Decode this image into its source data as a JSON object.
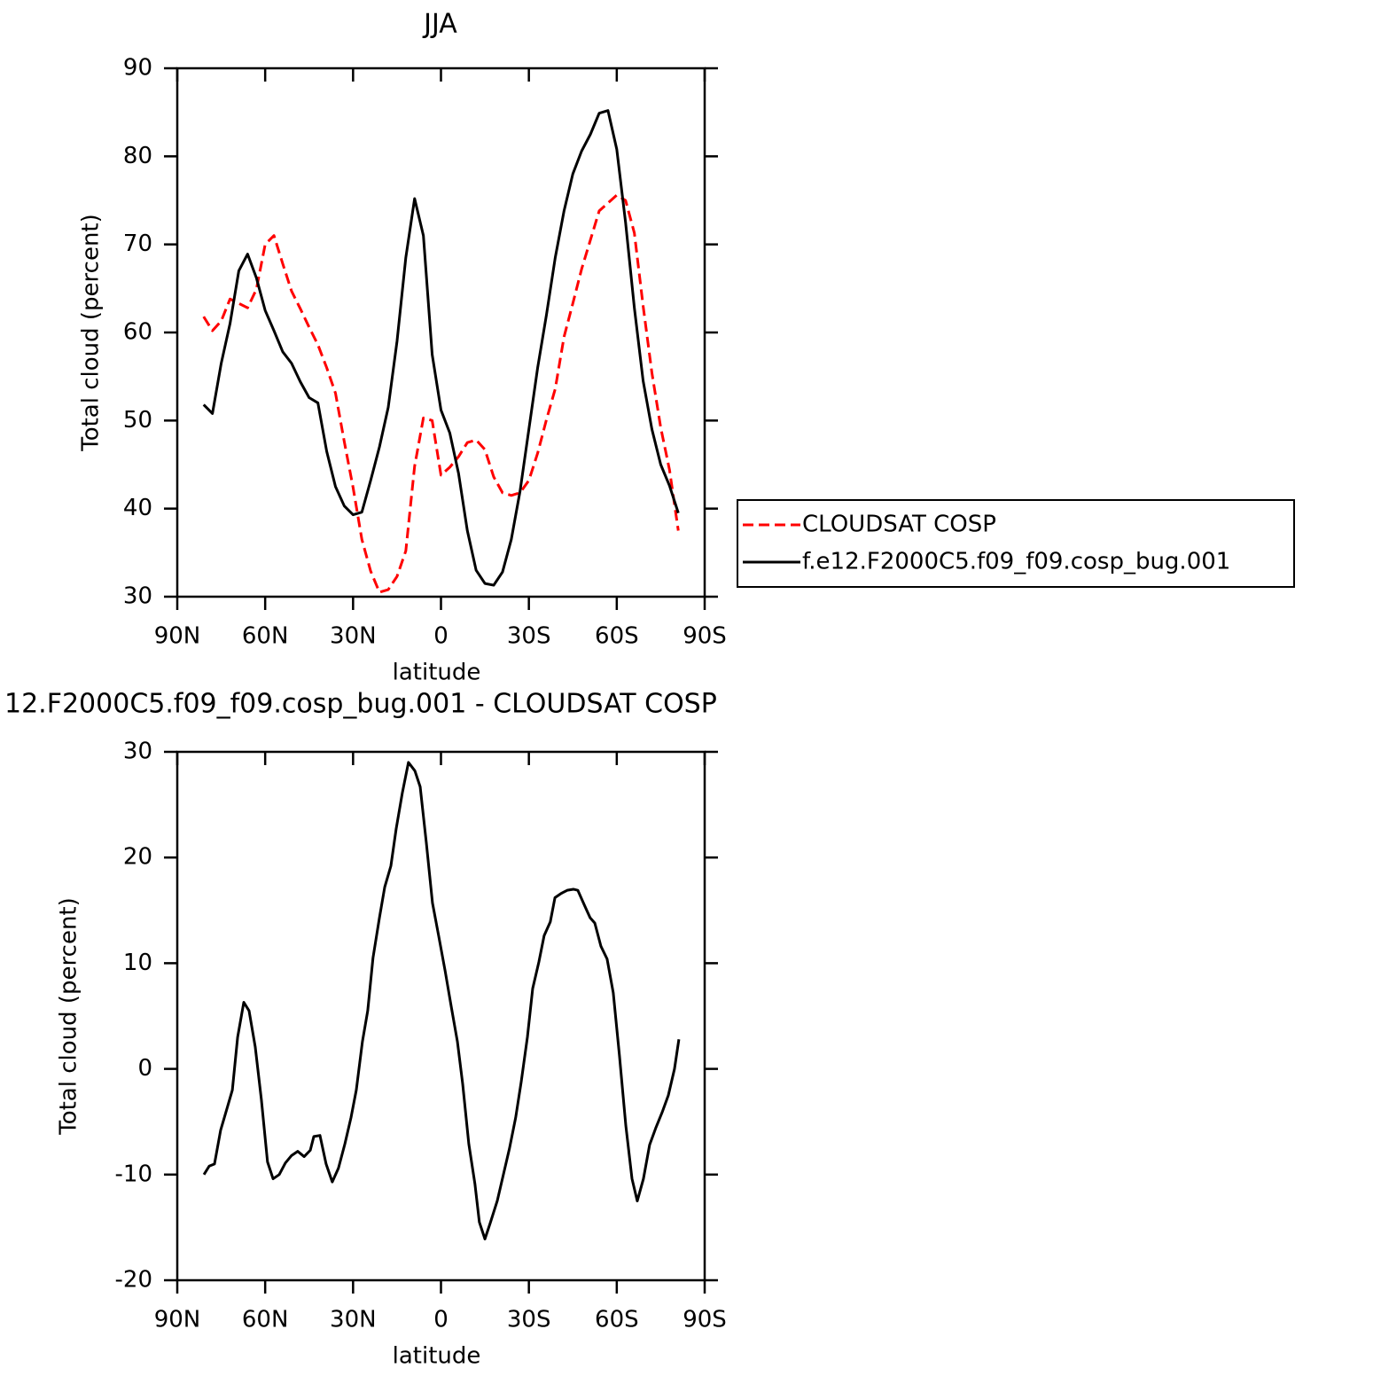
{
  "chart_data": [
    {
      "type": "line",
      "title": "JJA",
      "xlabel": "latitude",
      "ylabel": "Total cloud (percent)",
      "x": [
        81,
        78,
        75,
        72,
        69,
        66,
        63,
        60,
        57,
        54,
        51,
        48,
        45,
        42,
        39,
        36,
        33,
        30,
        27,
        24,
        21,
        18,
        15,
        12,
        9,
        6,
        3,
        0,
        -3,
        -6,
        -9,
        -12,
        -15,
        -18,
        -21,
        -24,
        -27,
        -30,
        -33,
        -36,
        -39,
        -42,
        -45,
        -48,
        -51,
        -54,
        -57,
        -60,
        -63,
        -66,
        -69,
        -72,
        -75,
        -78,
        -81
      ],
      "series": [
        {
          "name": "CLOUDSAT COSP",
          "color": "#ff0000",
          "style": "dashed",
          "values": [
            61.8,
            60.2,
            61.3,
            63.8,
            63.3,
            62.8,
            64.9,
            70.0,
            71.0,
            67.8,
            64.7,
            62.7,
            60.6,
            58.6,
            56.0,
            53.1,
            47.6,
            42.4,
            36.5,
            32.9,
            30.5,
            30.8,
            32.3,
            35.2,
            44.8,
            50.3,
            50.0,
            43.8,
            44.7,
            45.9,
            47.5,
            47.8,
            46.7,
            43.6,
            41.8,
            41.5,
            41.8,
            43.2,
            46.3,
            50.1,
            53.6,
            59.5,
            63.3,
            67.2,
            70.5,
            73.8,
            74.7,
            75.6,
            75.0,
            71.3,
            63.0,
            55.4,
            49.2,
            44.4,
            37.5
          ]
        },
        {
          "name": "f.e12.F2000C5.f09_f09.cosp_bug.001",
          "color": "#000000",
          "style": "solid",
          "values": [
            51.8,
            50.8,
            56.5,
            61.0,
            67.0,
            68.9,
            66.2,
            62.5,
            60.2,
            57.8,
            56.5,
            54.4,
            52.6,
            52.0,
            46.5,
            42.5,
            40.3,
            39.3,
            39.6,
            43.2,
            47.0,
            51.5,
            59.0,
            68.5,
            75.2,
            71.0,
            57.5,
            51.2,
            48.6,
            44.0,
            37.5,
            33.0,
            31.5,
            31.3,
            32.8,
            36.5,
            42.0,
            49.0,
            56.0,
            62.0,
            68.5,
            73.8,
            78.0,
            80.6,
            82.5,
            84.9,
            85.2,
            80.8,
            72.5,
            62.8,
            54.5,
            49.0,
            45.0,
            42.6,
            39.5
          ]
        }
      ],
      "xlim": [
        90,
        -90
      ],
      "xticks": [
        {
          "value": 90,
          "label": "90N"
        },
        {
          "value": 60,
          "label": "60N"
        },
        {
          "value": 30,
          "label": "30N"
        },
        0,
        {
          "value": -30,
          "label": "30S"
        },
        {
          "value": -60,
          "label": "60S"
        },
        {
          "value": -90,
          "label": "90S"
        }
      ],
      "ylim": [
        30,
        90
      ],
      "yticks": [
        30,
        40,
        50,
        60,
        70,
        80,
        90
      ],
      "legend": "outside-right"
    },
    {
      "type": "line",
      "title": "12.F2000C5.f09_f09.cosp_bug.001 - CLOUDSAT COSP",
      "xlabel": "latitude",
      "ylabel": "Total cloud (percent)",
      "x": [
        80.9,
        79.1,
        77.3,
        75.2,
        73.4,
        71.2,
        69.4,
        67.3,
        65.5,
        63.4,
        61.3,
        59.2,
        57.3,
        55.2,
        53.1,
        51.0,
        48.9,
        46.7,
        44.6,
        43.4,
        41.3,
        39.2,
        37.1,
        35.0,
        32.8,
        30.7,
        28.9,
        26.8,
        25.0,
        23.2,
        21.0,
        19.2,
        17.1,
        15.3,
        13.2,
        11.1,
        8.9,
        7.1,
        5.0,
        2.9,
        0.8,
        -1.4,
        -3.5,
        -5.6,
        -7.4,
        -9.5,
        -11.6,
        -13.1,
        -15.0,
        -16.8,
        -19.2,
        -21.3,
        -23.4,
        -25.5,
        -27.4,
        -29.5,
        -31.3,
        -33.4,
        -35.2,
        -37.3,
        -38.9,
        -41.0,
        -43.1,
        -45.2,
        -46.7,
        -49.1,
        -50.9,
        -52.5,
        -54.6,
        -56.7,
        -58.8,
        -60.9,
        -63.1,
        -65.2,
        -67.0,
        -69.1,
        -71.2,
        -73.3,
        -75.5,
        -77.6,
        -79.7,
        -81.2
      ],
      "values": [
        -10.0,
        -9.2,
        -9.0,
        -5.8,
        -4.1,
        -2.0,
        3.0,
        6.3,
        5.5,
        2.1,
        -2.9,
        -8.8,
        -10.4,
        -10.0,
        -8.9,
        -8.2,
        -7.8,
        -8.3,
        -7.7,
        -6.4,
        -6.3,
        -9.0,
        -10.7,
        -9.4,
        -7.1,
        -4.6,
        -2.0,
        2.6,
        5.5,
        10.5,
        14.3,
        17.2,
        19.2,
        22.7,
        26.1,
        29.0,
        28.2,
        26.7,
        21.4,
        15.7,
        12.6,
        9.3,
        5.9,
        2.6,
        -1.4,
        -7.1,
        -10.9,
        -14.5,
        -16.1,
        -14.6,
        -12.5,
        -10.0,
        -7.5,
        -4.6,
        -1.2,
        3.0,
        7.6,
        10.1,
        12.6,
        13.9,
        16.2,
        16.6,
        16.9,
        17.0,
        16.9,
        15.4,
        14.3,
        13.8,
        11.6,
        10.4,
        7.2,
        1.3,
        -5.4,
        -10.4,
        -12.5,
        -10.4,
        -7.2,
        -5.6,
        -4.1,
        -2.5,
        0.0,
        2.8
      ],
      "color": "#000000",
      "xlim": [
        90,
        -90
      ],
      "xticks": [
        {
          "value": 90,
          "label": "90N"
        },
        {
          "value": 60,
          "label": "60N"
        },
        {
          "value": 30,
          "label": "30N"
        },
        0,
        {
          "value": -30,
          "label": "30S"
        },
        {
          "value": -60,
          "label": "60S"
        },
        {
          "value": -90,
          "label": "90S"
        }
      ],
      "ylim": [
        -20,
        30
      ],
      "yticks": [
        -20,
        -10,
        0,
        10,
        20,
        30
      ]
    }
  ]
}
